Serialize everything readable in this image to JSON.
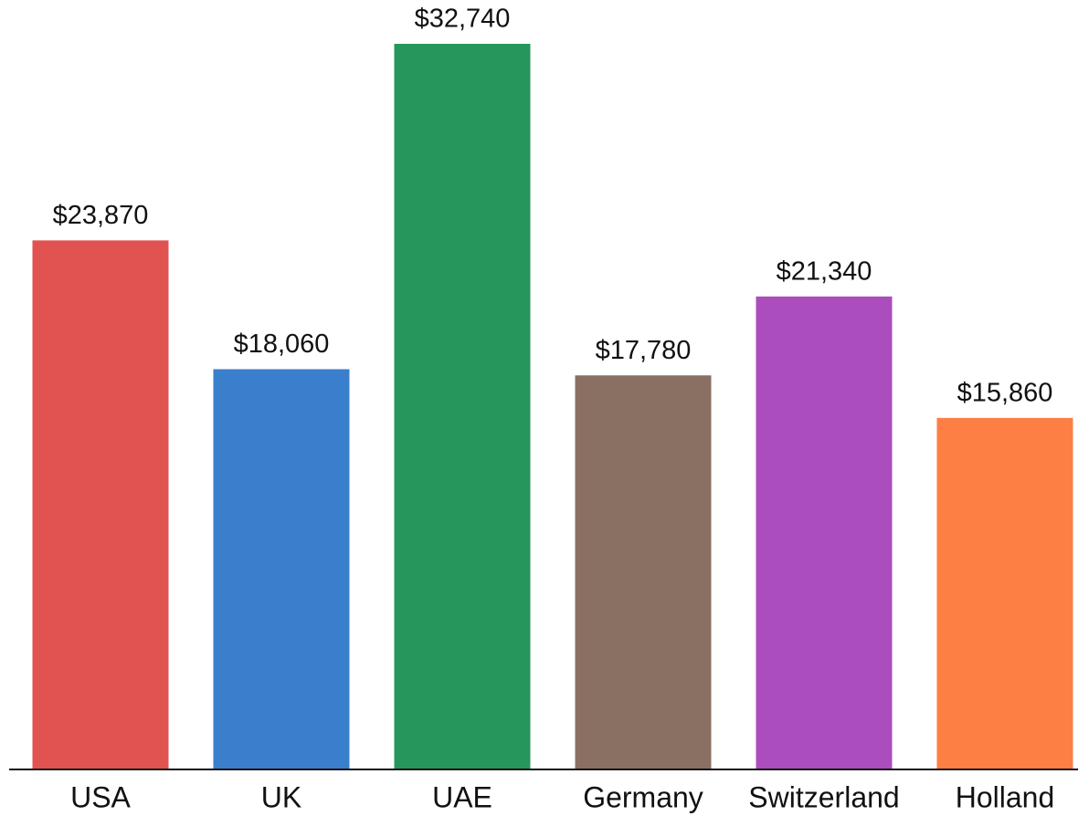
{
  "chart_data": {
    "type": "bar",
    "categories": [
      "USA",
      "UK",
      "UAE",
      "Germany",
      "Switzerland",
      "Holland"
    ],
    "values": [
      23870,
      18060,
      32740,
      17780,
      21340,
      15860
    ],
    "value_labels": [
      "$23,870",
      "$18,060",
      "$32,740",
      "$17,780",
      "$21,340",
      "$15,860"
    ],
    "colors": [
      "#e05350",
      "#3a7fcc",
      "#26965c",
      "#8a6f63",
      "#ab4dbc",
      "#fe7f44"
    ]
  }
}
